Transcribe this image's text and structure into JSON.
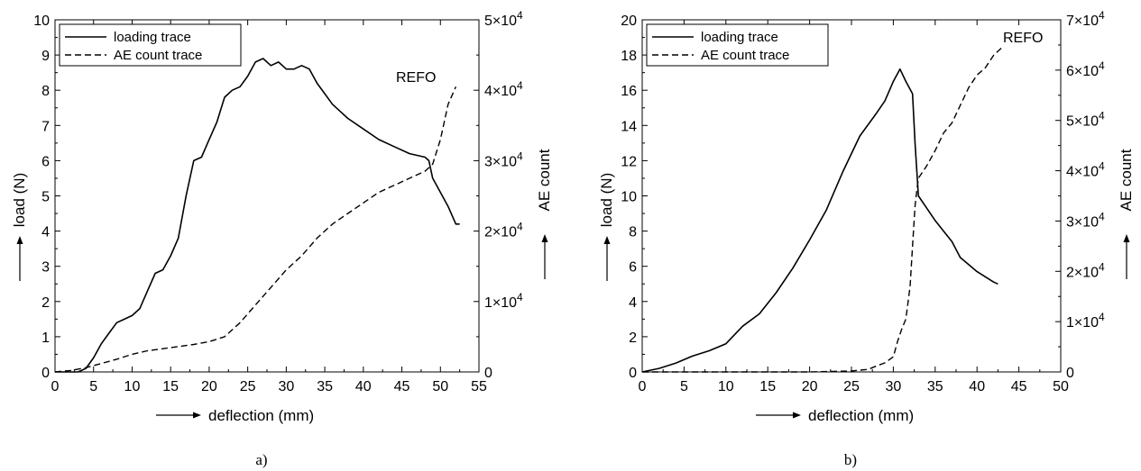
{
  "chart_data": [
    {
      "type": "line",
      "caption": "a)",
      "annotation": "REFO",
      "xlabel": "deflection (mm)",
      "ylabel": "load (N)",
      "y2label": "AE count",
      "xlim": [
        0,
        55
      ],
      "ylim": [
        0,
        10
      ],
      "y2lim": [
        0,
        50000
      ],
      "xticks": [
        "0",
        "5",
        "10",
        "15",
        "20",
        "25",
        "30",
        "35",
        "40",
        "45",
        "50",
        "55"
      ],
      "yticks": [
        "0",
        "1",
        "2",
        "3",
        "4",
        "5",
        "6",
        "7",
        "8",
        "9",
        "10"
      ],
      "y2ticks": [
        "0",
        "1×10^4",
        "2×10^4",
        "3×10^4",
        "4×10^4",
        "5×10^4"
      ],
      "legend_position": "top-left",
      "series": [
        {
          "name": "loading trace",
          "axis": "left",
          "style": "solid",
          "x": [
            0,
            3,
            4,
            5,
            6,
            7,
            8,
            9,
            10,
            11,
            12,
            13,
            14,
            15,
            16,
            17,
            18,
            19,
            20,
            21,
            22,
            23,
            24,
            25,
            26,
            27,
            28,
            29,
            30,
            31,
            32,
            33,
            34,
            35,
            36,
            37,
            38,
            40,
            42,
            44,
            46,
            48,
            48.5,
            49,
            50,
            51,
            52,
            52.5
          ],
          "y": [
            0,
            0,
            0.1,
            0.4,
            0.8,
            1.1,
            1.4,
            1.5,
            1.6,
            1.8,
            2.3,
            2.8,
            2.9,
            3.3,
            3.8,
            5.0,
            6.0,
            6.1,
            6.6,
            7.1,
            7.8,
            8.0,
            8.1,
            8.4,
            8.8,
            8.9,
            8.7,
            8.8,
            8.6,
            8.6,
            8.7,
            8.6,
            8.2,
            7.9,
            7.6,
            7.4,
            7.2,
            6.9,
            6.6,
            6.4,
            6.2,
            6.1,
            6.0,
            5.5,
            5.1,
            4.7,
            4.2,
            4.2
          ]
        },
        {
          "name": "AE count trace",
          "axis": "right",
          "style": "dashed",
          "x": [
            0,
            2,
            4,
            6,
            8,
            10,
            12,
            14,
            16,
            18,
            20,
            22,
            24,
            26,
            28,
            30,
            32,
            34,
            36,
            38,
            40,
            42,
            44,
            46,
            48,
            49,
            50,
            51,
            52
          ],
          "y": [
            0,
            200,
            600,
            1200,
            1800,
            2500,
            3000,
            3300,
            3600,
            3900,
            4300,
            5000,
            7000,
            9500,
            12000,
            14500,
            16500,
            19000,
            21000,
            22500,
            24000,
            25500,
            26500,
            27500,
            28500,
            29500,
            33000,
            38000,
            40500
          ]
        }
      ]
    },
    {
      "type": "line",
      "caption": "b)",
      "annotation": "REFO",
      "xlabel": "deflection (mm)",
      "ylabel": "load (N)",
      "y2label": "AE count",
      "xlim": [
        0,
        50
      ],
      "ylim": [
        0,
        20
      ],
      "y2lim": [
        0,
        70000
      ],
      "xticks": [
        "0",
        "5",
        "10",
        "15",
        "20",
        "25",
        "30",
        "35",
        "40",
        "45",
        "50"
      ],
      "yticks": [
        "0",
        "2",
        "4",
        "6",
        "8",
        "10",
        "12",
        "14",
        "16",
        "18",
        "20"
      ],
      "y2ticks": [
        "0",
        "1×10^4",
        "2×10^4",
        "3×10^4",
        "4×10^4",
        "5×10^4",
        "6×10^4",
        "7×10^4"
      ],
      "legend_position": "top-left",
      "series": [
        {
          "name": "loading trace",
          "axis": "left",
          "style": "solid",
          "x": [
            0,
            2,
            4,
            6,
            8,
            10,
            12,
            14,
            16,
            18,
            20,
            22,
            24,
            26,
            28,
            29,
            30,
            30.8,
            31.5,
            32.3,
            32.6,
            33,
            34,
            35,
            36,
            37,
            38,
            40,
            42,
            42.5
          ],
          "y": [
            0,
            0.2,
            0.5,
            0.9,
            1.2,
            1.6,
            2.6,
            3.3,
            4.5,
            5.9,
            7.5,
            9.2,
            11.4,
            13.4,
            14.7,
            15.4,
            16.5,
            17.2,
            16.5,
            15.8,
            13.0,
            10.0,
            9.3,
            8.6,
            8.0,
            7.4,
            6.5,
            5.7,
            5.1,
            5.0
          ]
        },
        {
          "name": "AE count trace",
          "axis": "right",
          "style": "dashed",
          "x": [
            0,
            10,
            20,
            25,
            27,
            28,
            29,
            30,
            30.5,
            31,
            31.5,
            32,
            32.3,
            32.6,
            32.8,
            33,
            34,
            35,
            36,
            37,
            38,
            39,
            40,
            41,
            42,
            43
          ],
          "y": [
            0,
            0,
            0,
            200,
            500,
            1200,
            1800,
            3000,
            6000,
            8500,
            10500,
            17000,
            25000,
            33000,
            36000,
            38500,
            41000,
            44000,
            47500,
            49500,
            53000,
            56500,
            59000,
            60500,
            63000,
            64500
          ]
        }
      ]
    }
  ]
}
